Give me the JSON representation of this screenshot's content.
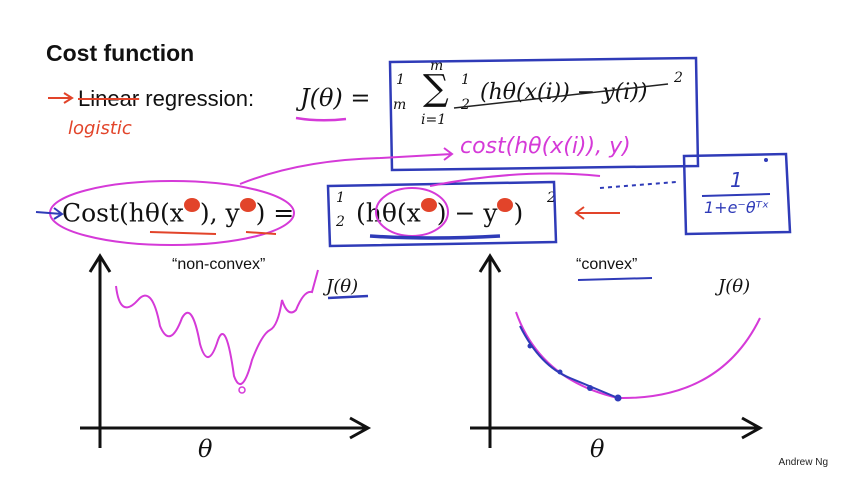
{
  "slide": {
    "title": "Cost function",
    "regression_strikethrough": "Linear",
    "regression_rest": " regression:",
    "handwritten_logistic": "logistic",
    "j_theta": "J(θ) =",
    "handwritten_cost": "cost(hθ(x(i)), y)",
    "handwritten_sigmoid_num": "1",
    "handwritten_sigmoid_den": "1+e⁻θᵀˣ",
    "cost_lhs": "Cost(hθ(x",
    "cost_mid": "), y",
    "cost_eq": ") =",
    "cost_half": "1",
    "cost_half_den": "2",
    "cost_rhs_a": "(hθ(x",
    "cost_rhs_b": ") − y",
    "cost_rhs_c": ")",
    "cost_sq": "2",
    "sum_top": "m",
    "sum_bottom": "i=1",
    "one_over_m_num": "1",
    "one_over_m_den": "m",
    "sq_term": "(hθ(x(i)) − y(i))",
    "sq_exp": "2"
  },
  "plots": {
    "left": {
      "label": "“non-convex”",
      "ylabel": "J(θ)",
      "xlabel": "θ"
    },
    "right": {
      "label": "“convex”",
      "ylabel": "J(θ)",
      "xlabel": "θ"
    }
  },
  "credit": "Andrew Ng",
  "colors": {
    "annotation_red": "#e2442a",
    "annotation_magenta": "#d53ad8",
    "annotation_blue": "#2f3bb8"
  }
}
